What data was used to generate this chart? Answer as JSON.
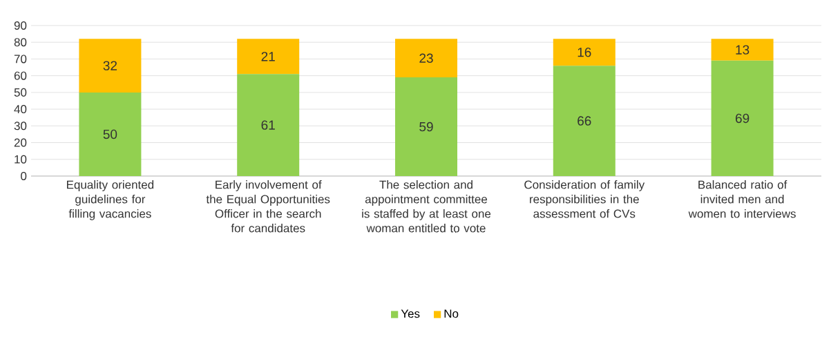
{
  "chart_data": {
    "type": "bar",
    "stacked": true,
    "categories": [
      "Equality oriented guidelines for filling vacancies",
      "Early involvement of the Equal Opportunities Officer in the search for candidates",
      "The selection and appointment committee is staffed by at least one woman entitled to vote",
      "Consideration of family responsibilities in the assessment of CVs",
      "Balanced ratio of invited men and women to interviews"
    ],
    "series": [
      {
        "name": "Yes",
        "color": "#92d050",
        "values": [
          50,
          61,
          59,
          66,
          69
        ]
      },
      {
        "name": "No",
        "color": "#ffc000",
        "values": [
          32,
          21,
          23,
          16,
          13
        ]
      }
    ],
    "ylim": [
      0,
      90
    ],
    "yticks": [
      0,
      10,
      20,
      30,
      40,
      50,
      60,
      70,
      80,
      90
    ],
    "grid": "y",
    "legend": "bottom",
    "data_labels": true
  }
}
